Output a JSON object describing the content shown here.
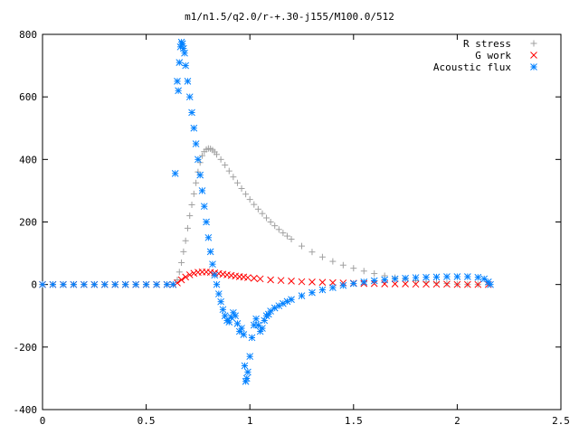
{
  "chart_data": {
    "type": "scatter",
    "title": "m1/n1.5/q2.0/r-+.30-j155/M100.0/512",
    "xlim": [
      0,
      2.5
    ],
    "ylim": [
      -400,
      800
    ],
    "xticks": [
      "0",
      "0.5",
      "1",
      "1.5",
      "2",
      "2.5"
    ],
    "yticks": [
      "-400",
      "-200",
      "0",
      "200",
      "400",
      "600",
      "800"
    ],
    "grid": false,
    "legend_position": "top-right",
    "series": [
      {
        "name": "R stress",
        "marker": "plus",
        "color": "#a0a0a0",
        "points": [
          [
            0.0,
            0
          ],
          [
            0.05,
            0
          ],
          [
            0.1,
            0
          ],
          [
            0.15,
            0
          ],
          [
            0.2,
            0
          ],
          [
            0.25,
            0
          ],
          [
            0.3,
            0
          ],
          [
            0.35,
            0
          ],
          [
            0.4,
            0
          ],
          [
            0.45,
            0
          ],
          [
            0.5,
            0
          ],
          [
            0.55,
            0
          ],
          [
            0.6,
            0
          ],
          [
            0.63,
            0
          ],
          [
            0.65,
            15
          ],
          [
            0.66,
            40
          ],
          [
            0.67,
            70
          ],
          [
            0.68,
            105
          ],
          [
            0.69,
            140
          ],
          [
            0.7,
            180
          ],
          [
            0.71,
            220
          ],
          [
            0.72,
            255
          ],
          [
            0.73,
            290
          ],
          [
            0.74,
            325
          ],
          [
            0.75,
            360
          ],
          [
            0.76,
            390
          ],
          [
            0.77,
            412
          ],
          [
            0.78,
            425
          ],
          [
            0.79,
            432
          ],
          [
            0.8,
            435
          ],
          [
            0.81,
            434
          ],
          [
            0.82,
            430
          ],
          [
            0.83,
            424
          ],
          [
            0.84,
            416
          ],
          [
            0.86,
            400
          ],
          [
            0.88,
            382
          ],
          [
            0.9,
            363
          ],
          [
            0.92,
            344
          ],
          [
            0.94,
            325
          ],
          [
            0.96,
            307
          ],
          [
            0.98,
            289
          ],
          [
            1.0,
            272
          ],
          [
            1.02,
            256
          ],
          [
            1.04,
            241
          ],
          [
            1.06,
            227
          ],
          [
            1.08,
            213
          ],
          [
            1.1,
            200
          ],
          [
            1.12,
            188
          ],
          [
            1.14,
            176
          ],
          [
            1.16,
            165
          ],
          [
            1.18,
            155
          ],
          [
            1.2,
            145
          ],
          [
            1.25,
            123
          ],
          [
            1.3,
            104
          ],
          [
            1.35,
            88
          ],
          [
            1.4,
            74
          ],
          [
            1.45,
            62
          ],
          [
            1.5,
            52
          ],
          [
            1.55,
            43
          ],
          [
            1.6,
            35
          ],
          [
            1.65,
            28
          ],
          [
            1.7,
            22
          ],
          [
            1.75,
            17
          ],
          [
            1.8,
            12
          ],
          [
            1.85,
            8
          ],
          [
            1.9,
            5
          ],
          [
            1.95,
            3
          ],
          [
            2.0,
            1
          ],
          [
            2.05,
            0
          ],
          [
            2.1,
            0
          ],
          [
            2.15,
            0
          ]
        ]
      },
      {
        "name": "G work",
        "marker": "cross",
        "color": "#ff0000",
        "points": [
          [
            0.0,
            0
          ],
          [
            0.05,
            0
          ],
          [
            0.1,
            0
          ],
          [
            0.15,
            0
          ],
          [
            0.2,
            0
          ],
          [
            0.25,
            0
          ],
          [
            0.3,
            0
          ],
          [
            0.35,
            0
          ],
          [
            0.4,
            0
          ],
          [
            0.45,
            0
          ],
          [
            0.5,
            0
          ],
          [
            0.55,
            0
          ],
          [
            0.6,
            0
          ],
          [
            0.63,
            0
          ],
          [
            0.65,
            5
          ],
          [
            0.67,
            15
          ],
          [
            0.69,
            24
          ],
          [
            0.71,
            31
          ],
          [
            0.73,
            36
          ],
          [
            0.75,
            39
          ],
          [
            0.77,
            40
          ],
          [
            0.79,
            40
          ],
          [
            0.81,
            39
          ],
          [
            0.83,
            37
          ],
          [
            0.85,
            35
          ],
          [
            0.87,
            33
          ],
          [
            0.89,
            31
          ],
          [
            0.91,
            29
          ],
          [
            0.93,
            27
          ],
          [
            0.95,
            25
          ],
          [
            0.97,
            24
          ],
          [
            0.99,
            22
          ],
          [
            1.02,
            20
          ],
          [
            1.05,
            18
          ],
          [
            1.1,
            15
          ],
          [
            1.15,
            13
          ],
          [
            1.2,
            11
          ],
          [
            1.25,
            9
          ],
          [
            1.3,
            8
          ],
          [
            1.35,
            7
          ],
          [
            1.4,
            6
          ],
          [
            1.45,
            5
          ],
          [
            1.5,
            4
          ],
          [
            1.55,
            3
          ],
          [
            1.6,
            3
          ],
          [
            1.65,
            2
          ],
          [
            1.7,
            2
          ],
          [
            1.75,
            2
          ],
          [
            1.8,
            1
          ],
          [
            1.85,
            1
          ],
          [
            1.9,
            1
          ],
          [
            1.95,
            1
          ],
          [
            2.0,
            0
          ],
          [
            2.05,
            0
          ],
          [
            2.1,
            0
          ],
          [
            2.15,
            0
          ]
        ]
      },
      {
        "name": "Acoustic flux",
        "marker": "star",
        "color": "#0080ff",
        "points": [
          [
            0.0,
            0
          ],
          [
            0.05,
            0
          ],
          [
            0.1,
            0
          ],
          [
            0.15,
            0
          ],
          [
            0.2,
            0
          ],
          [
            0.25,
            0
          ],
          [
            0.3,
            0
          ],
          [
            0.35,
            0
          ],
          [
            0.4,
            0
          ],
          [
            0.45,
            0
          ],
          [
            0.5,
            0
          ],
          [
            0.55,
            0
          ],
          [
            0.6,
            0
          ],
          [
            0.63,
            0
          ],
          [
            0.64,
            355
          ],
          [
            0.65,
            650
          ],
          [
            0.655,
            620
          ],
          [
            0.66,
            710
          ],
          [
            0.665,
            760
          ],
          [
            0.67,
            775
          ],
          [
            0.675,
            770
          ],
          [
            0.68,
            755
          ],
          [
            0.685,
            740
          ],
          [
            0.69,
            700
          ],
          [
            0.7,
            650
          ],
          [
            0.71,
            600
          ],
          [
            0.72,
            550
          ],
          [
            0.73,
            500
          ],
          [
            0.74,
            450
          ],
          [
            0.75,
            400
          ],
          [
            0.76,
            350
          ],
          [
            0.77,
            300
          ],
          [
            0.78,
            250
          ],
          [
            0.79,
            200
          ],
          [
            0.8,
            150
          ],
          [
            0.81,
            105
          ],
          [
            0.82,
            65
          ],
          [
            0.83,
            30
          ],
          [
            0.84,
            0
          ],
          [
            0.85,
            -30
          ],
          [
            0.86,
            -55
          ],
          [
            0.87,
            -80
          ],
          [
            0.88,
            -100
          ],
          [
            0.89,
            -115
          ],
          [
            0.9,
            -120
          ],
          [
            0.91,
            -105
          ],
          [
            0.92,
            -90
          ],
          [
            0.93,
            -100
          ],
          [
            0.94,
            -125
          ],
          [
            0.95,
            -150
          ],
          [
            0.96,
            -140
          ],
          [
            0.97,
            -160
          ],
          [
            0.975,
            -260
          ],
          [
            0.98,
            -310
          ],
          [
            0.985,
            -300
          ],
          [
            0.99,
            -280
          ],
          [
            1.0,
            -230
          ],
          [
            1.01,
            -170
          ],
          [
            1.02,
            -130
          ],
          [
            1.03,
            -110
          ],
          [
            1.04,
            -130
          ],
          [
            1.05,
            -150
          ],
          [
            1.06,
            -140
          ],
          [
            1.07,
            -115
          ],
          [
            1.08,
            -100
          ],
          [
            1.09,
            -95
          ],
          [
            1.1,
            -85
          ],
          [
            1.12,
            -75
          ],
          [
            1.14,
            -68
          ],
          [
            1.16,
            -61
          ],
          [
            1.18,
            -54
          ],
          [
            1.2,
            -48
          ],
          [
            1.25,
            -36
          ],
          [
            1.3,
            -26
          ],
          [
            1.35,
            -17
          ],
          [
            1.4,
            -10
          ],
          [
            1.45,
            -3
          ],
          [
            1.5,
            3
          ],
          [
            1.55,
            8
          ],
          [
            1.6,
            12
          ],
          [
            1.65,
            15
          ],
          [
            1.7,
            18
          ],
          [
            1.75,
            20
          ],
          [
            1.8,
            22
          ],
          [
            1.85,
            23
          ],
          [
            1.9,
            24
          ],
          [
            1.95,
            25
          ],
          [
            2.0,
            25
          ],
          [
            2.05,
            25
          ],
          [
            2.1,
            23
          ],
          [
            2.13,
            18
          ],
          [
            2.15,
            8
          ],
          [
            2.16,
            0
          ]
        ]
      }
    ]
  }
}
